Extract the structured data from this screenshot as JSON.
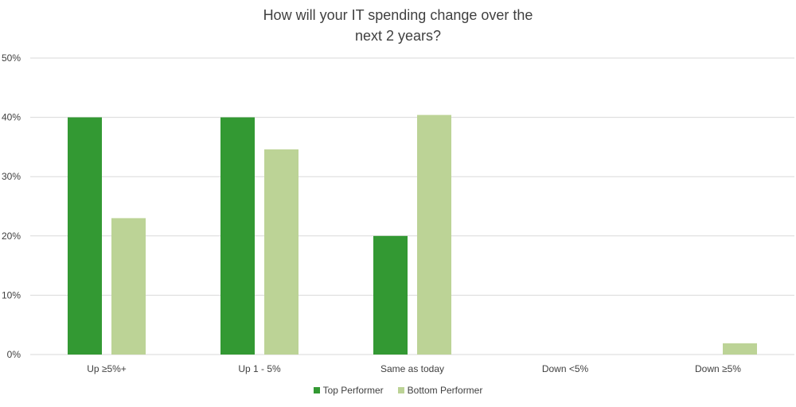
{
  "chart_data": {
    "type": "bar",
    "title_lines": [
      "How will your IT spending change over the",
      "next 2 years?"
    ],
    "categories": [
      "Up ≥5%+",
      "Up 1 - 5%",
      "Same as today",
      "Down <5%",
      "Down ≥5%"
    ],
    "series": [
      {
        "name": "Top Performer",
        "values": [
          40,
          40,
          20,
          0,
          0
        ],
        "color": "#339933"
      },
      {
        "name": "Bottom Performer",
        "values": [
          23,
          34.6,
          40.4,
          0,
          1.9
        ],
        "color": "#bcd396"
      }
    ],
    "ylim": [
      0,
      50
    ],
    "yticks": [
      "0%",
      "10%",
      "20%",
      "30%",
      "40%",
      "50%"
    ],
    "grid": true,
    "legend_position": "bottom"
  }
}
